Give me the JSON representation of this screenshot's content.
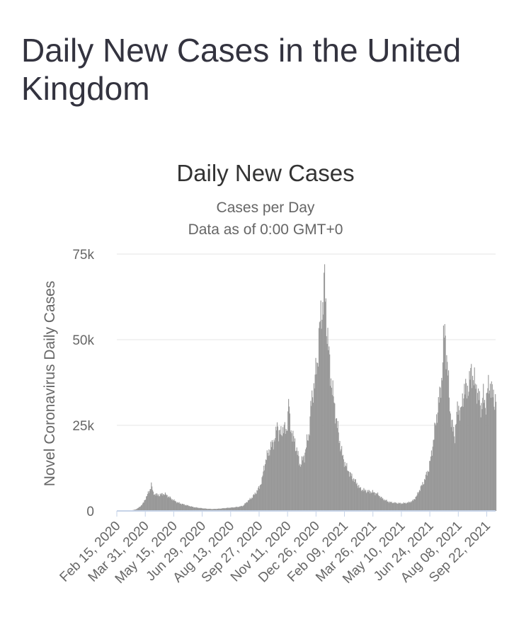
{
  "page": {
    "title": "Daily New Cases in the United Kingdom"
  },
  "colors": {
    "bar": "#999999",
    "baseline": "#c6d3e8",
    "grid": "#e6e6e6",
    "text": "#333333",
    "muted": "#666666"
  },
  "chart_data": {
    "type": "bar",
    "title": "Daily New Cases",
    "subtitle_lines": [
      "Cases per Day",
      "Data as of 0:00 GMT+0"
    ],
    "xlabel": "",
    "ylabel": "Novel Coronavirus Daily Cases",
    "ylim": [
      0,
      75000
    ],
    "y_ticks": [
      {
        "value": 0,
        "label": "0"
      },
      {
        "value": 25000,
        "label": "25k"
      },
      {
        "value": 50000,
        "label": "50k"
      },
      {
        "value": 75000,
        "label": "75k"
      }
    ],
    "x_start": "2020-02-15",
    "x_end": "2021-10-06",
    "x_ticks": [
      {
        "date": "2020-02-15",
        "label": "Feb 15, 2020"
      },
      {
        "date": "2020-03-31",
        "label": "Mar 31, 2020"
      },
      {
        "date": "2020-05-15",
        "label": "May 15, 2020"
      },
      {
        "date": "2020-06-29",
        "label": "Jun 29, 2020"
      },
      {
        "date": "2020-08-13",
        "label": "Aug 13, 2020"
      },
      {
        "date": "2020-09-27",
        "label": "Sep 27, 2020"
      },
      {
        "date": "2020-11-11",
        "label": "Nov 11, 2020"
      },
      {
        "date": "2020-12-26",
        "label": "Dec 26, 2020"
      },
      {
        "date": "2021-02-09",
        "label": "Feb 09, 2021"
      },
      {
        "date": "2021-03-26",
        "label": "Mar 26, 2021"
      },
      {
        "date": "2021-05-10",
        "label": "May 10, 2021"
      },
      {
        "date": "2021-06-24",
        "label": "Jun 24, 2021"
      },
      {
        "date": "2021-08-08",
        "label": "Aug 08, 2021"
      },
      {
        "date": "2021-09-22",
        "label": "Sep 22, 2021"
      }
    ],
    "series": [
      {
        "points": [
          [
            "2020-02-15",
            0
          ],
          [
            "2020-03-05",
            50
          ],
          [
            "2020-03-15",
            400
          ],
          [
            "2020-03-22",
            1200
          ],
          [
            "2020-03-28",
            2500
          ],
          [
            "2020-04-02",
            4500
          ],
          [
            "2020-04-06",
            5800
          ],
          [
            "2020-04-09",
            7800
          ],
          [
            "2020-04-12",
            5200
          ],
          [
            "2020-04-16",
            4800
          ],
          [
            "2020-04-22",
            4600
          ],
          [
            "2020-04-27",
            5000
          ],
          [
            "2020-05-02",
            4800
          ],
          [
            "2020-05-06",
            4200
          ],
          [
            "2020-05-12",
            3400
          ],
          [
            "2020-05-20",
            2500
          ],
          [
            "2020-05-28",
            2000
          ],
          [
            "2020-06-05",
            1600
          ],
          [
            "2020-06-15",
            1100
          ],
          [
            "2020-06-25",
            850
          ],
          [
            "2020-07-05",
            650
          ],
          [
            "2020-07-15",
            550
          ],
          [
            "2020-07-25",
            650
          ],
          [
            "2020-08-05",
            850
          ],
          [
            "2020-08-15",
            1000
          ],
          [
            "2020-08-25",
            1200
          ],
          [
            "2020-09-01",
            1500
          ],
          [
            "2020-09-08",
            2800
          ],
          [
            "2020-09-15",
            3900
          ],
          [
            "2020-09-22",
            5500
          ],
          [
            "2020-09-27",
            7000
          ],
          [
            "2020-10-01",
            9000
          ],
          [
            "2020-10-04",
            12500
          ],
          [
            "2020-10-08",
            15500
          ],
          [
            "2020-10-12",
            17500
          ],
          [
            "2020-10-16",
            19000
          ],
          [
            "2020-10-20",
            20500
          ],
          [
            "2020-10-23",
            22000
          ],
          [
            "2020-10-25",
            26000
          ],
          [
            "2020-10-27",
            23000
          ],
          [
            "2020-10-31",
            22500
          ],
          [
            "2020-11-04",
            24500
          ],
          [
            "2020-11-08",
            23000
          ],
          [
            "2020-11-11",
            27500
          ],
          [
            "2020-11-12",
            33000
          ],
          [
            "2020-11-14",
            26000
          ],
          [
            "2020-11-18",
            22000
          ],
          [
            "2020-11-22",
            20000
          ],
          [
            "2020-11-26",
            17000
          ],
          [
            "2020-11-30",
            13500
          ],
          [
            "2020-12-03",
            14500
          ],
          [
            "2020-12-07",
            16000
          ],
          [
            "2020-12-11",
            20000
          ],
          [
            "2020-12-14",
            22000
          ],
          [
            "2020-12-17",
            30000
          ],
          [
            "2020-12-21",
            35000
          ],
          [
            "2020-12-24",
            39000
          ],
          [
            "2020-12-28",
            44000
          ],
          [
            "2020-12-31",
            54000
          ],
          [
            "2021-01-03",
            57000
          ],
          [
            "2021-01-06",
            62000
          ],
          [
            "2021-01-08",
            67500
          ],
          [
            "2021-01-11",
            55000
          ],
          [
            "2021-01-14",
            48000
          ],
          [
            "2021-01-17",
            40000
          ],
          [
            "2021-01-20",
            36000
          ],
          [
            "2021-01-24",
            30000
          ],
          [
            "2021-01-28",
            25000
          ],
          [
            "2021-02-01",
            20000
          ],
          [
            "2021-02-06",
            15500
          ],
          [
            "2021-02-12",
            12500
          ],
          [
            "2021-02-20",
            10000
          ],
          [
            "2021-02-28",
            8000
          ],
          [
            "2021-03-05",
            6500
          ],
          [
            "2021-03-15",
            5800
          ],
          [
            "2021-03-25",
            5500
          ],
          [
            "2021-04-01",
            5000
          ],
          [
            "2021-04-10",
            3500
          ],
          [
            "2021-04-20",
            2600
          ],
          [
            "2021-05-01",
            2300
          ],
          [
            "2021-05-10",
            2200
          ],
          [
            "2021-05-20",
            2400
          ],
          [
            "2021-05-28",
            3000
          ],
          [
            "2021-06-03",
            4500
          ],
          [
            "2021-06-08",
            6500
          ],
          [
            "2021-06-14",
            8500
          ],
          [
            "2021-06-18",
            10500
          ],
          [
            "2021-06-22",
            12500
          ],
          [
            "2021-06-26",
            16500
          ],
          [
            "2021-06-30",
            22000
          ],
          [
            "2021-07-03",
            26000
          ],
          [
            "2021-07-07",
            31000
          ],
          [
            "2021-07-10",
            35000
          ],
          [
            "2021-07-13",
            40000
          ],
          [
            "2021-07-15",
            48500
          ],
          [
            "2021-07-17",
            54000
          ],
          [
            "2021-07-19",
            47000
          ],
          [
            "2021-07-22",
            40000
          ],
          [
            "2021-07-26",
            28000
          ],
          [
            "2021-07-29",
            24500
          ],
          [
            "2021-08-02",
            22000
          ],
          [
            "2021-08-05",
            28000
          ],
          [
            "2021-08-08",
            31000
          ],
          [
            "2021-08-11",
            28000
          ],
          [
            "2021-08-14",
            32000
          ],
          [
            "2021-08-17",
            36000
          ],
          [
            "2021-08-21",
            35000
          ],
          [
            "2021-08-25",
            37500
          ],
          [
            "2021-08-28",
            41000
          ],
          [
            "2021-09-01",
            38000
          ],
          [
            "2021-09-05",
            36000
          ],
          [
            "2021-09-09",
            33000
          ],
          [
            "2021-09-12",
            30000
          ],
          [
            "2021-09-16",
            33500
          ],
          [
            "2021-09-19",
            30500
          ],
          [
            "2021-09-23",
            35500
          ],
          [
            "2021-09-27",
            37000
          ],
          [
            "2021-10-01",
            34000
          ],
          [
            "2021-10-04",
            32000
          ],
          [
            "2021-10-06",
            33000
          ]
        ]
      }
    ]
  }
}
